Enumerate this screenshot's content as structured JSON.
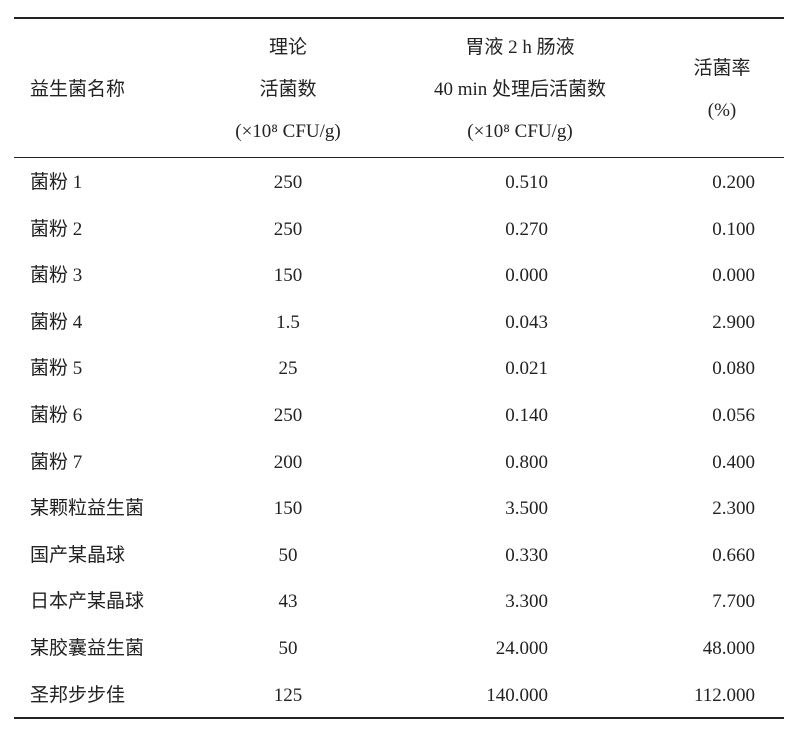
{
  "header": {
    "columns": [
      {
        "lines": [
          "益生菌名称"
        ]
      },
      {
        "lines": [
          "理论",
          "活菌数",
          "(×10⁸ CFU/g)"
        ]
      },
      {
        "lines": [
          "胃液 2 h 肠液",
          "40 min 处理后活菌数",
          "(×10⁸ CFU/g)"
        ]
      },
      {
        "lines": [
          "活菌率",
          "(%)"
        ]
      }
    ]
  },
  "table": {
    "rows": [
      [
        "菌粉 1",
        "250",
        "0.510",
        "0.200"
      ],
      [
        "菌粉 2",
        "250",
        "0.270",
        "0.100"
      ],
      [
        "菌粉 3",
        "150",
        "0.000",
        "0.000"
      ],
      [
        "菌粉 4",
        "1.5",
        "0.043",
        "2.900"
      ],
      [
        "菌粉 5",
        "25",
        "0.021",
        "0.080"
      ],
      [
        "菌粉 6",
        "250",
        "0.140",
        "0.056"
      ],
      [
        "菌粉 7",
        "200",
        "0.800",
        "0.400"
      ],
      [
        "某颗粒益生菌",
        "150",
        "3.500",
        "2.300"
      ],
      [
        "国产某晶球",
        "50",
        "0.330",
        "0.660"
      ],
      [
        "日本产某晶球",
        "43",
        "3.300",
        "7.700"
      ],
      [
        "某胶囊益生菌",
        "50",
        "24.000",
        "48.000"
      ],
      [
        "圣邦步步佳",
        "125",
        "140.000",
        "112.000"
      ]
    ]
  }
}
